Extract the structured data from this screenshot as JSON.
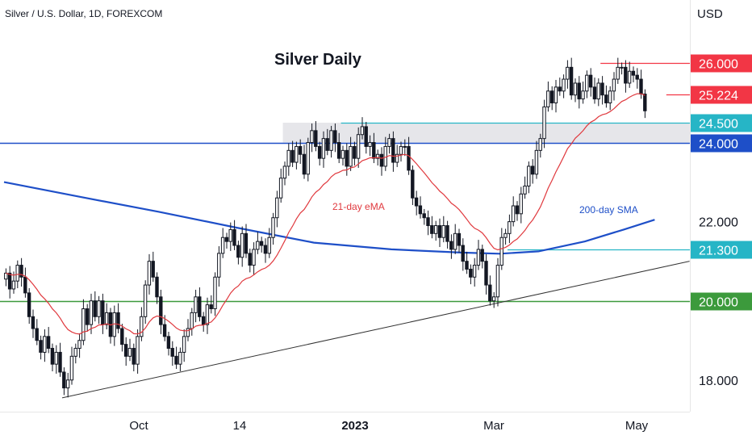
{
  "header": {
    "symbol": "Silver / U.S. Dollar, 1D, FOREXCOM",
    "currency": "USD"
  },
  "chart_data": {
    "type": "candlestick",
    "title": "Silver Daily",
    "ylim": [
      17.2,
      27.6
    ],
    "x_ticks": [
      "Oct",
      "14",
      "2023",
      "Mar",
      "May"
    ],
    "price_ticks": [
      {
        "label": "22.000",
        "value": 22.0
      },
      {
        "label": "18.000",
        "value": 18.0
      }
    ],
    "levels": [
      {
        "label": "26.000",
        "value": 26.0,
        "color": "#f23645",
        "x_from_bar": 154
      },
      {
        "label": "25.224",
        "value": 25.224,
        "color": "#f23645",
        "x_from_bar": 171
      },
      {
        "label": "24.500",
        "value": 24.5,
        "color": "#26b5c6",
        "x_from_bar": 87
      },
      {
        "label": "24.000",
        "value": 24.0,
        "color": "#1e4fc8",
        "x_from_bar": -1
      },
      {
        "label": "21.300",
        "value": 21.3,
        "color": "#26b5c6",
        "x_from_bar": 130
      },
      {
        "label": "20.000",
        "value": 20.0,
        "color": "#3c9a3c",
        "x_from_bar": -1
      }
    ],
    "resistance_zone": {
      "from": 24.0,
      "to": 24.5,
      "start_bar": 72
    },
    "trendline": [
      {
        "bar": 15,
        "value": 17.55
      },
      {
        "bar": 177,
        "value": 21.0
      }
    ],
    "series_labels": {
      "ema": {
        "text": "21-day eMA",
        "color": "#e0393e"
      },
      "sma": {
        "text": "200-day SMA",
        "color": "#1e4fc8"
      }
    },
    "sma200": [
      {
        "bar": 0,
        "value": 23.0
      },
      {
        "bar": 20,
        "value": 22.62
      },
      {
        "bar": 40,
        "value": 22.25
      },
      {
        "bar": 60,
        "value": 21.85
      },
      {
        "bar": 80,
        "value": 21.47
      },
      {
        "bar": 100,
        "value": 21.3
      },
      {
        "bar": 118,
        "value": 21.22
      },
      {
        "bar": 128,
        "value": 21.19
      },
      {
        "bar": 138,
        "value": 21.25
      },
      {
        "bar": 150,
        "value": 21.5
      },
      {
        "bar": 160,
        "value": 21.8
      },
      {
        "bar": 168,
        "value": 22.05
      }
    ],
    "closes": [
      20.7,
      20.3,
      20.5,
      20.9,
      20.6,
      20.2,
      19.6,
      19.3,
      19.0,
      18.7,
      19.1,
      18.8,
      18.4,
      18.7,
      18.2,
      17.8,
      18.0,
      18.6,
      18.8,
      19.0,
      19.8,
      19.4,
      20.0,
      19.6,
      20.0,
      19.4,
      19.7,
      19.1,
      19.7,
      19.3,
      18.9,
      18.6,
      18.8,
      18.4,
      19.1,
      19.6,
      20.4,
      21.0,
      20.6,
      20.1,
      19.4,
      19.1,
      18.8,
      18.6,
      18.4,
      18.7,
      19.1,
      19.3,
      19.7,
      20.1,
      19.6,
      19.4,
      19.9,
      19.8,
      20.6,
      21.2,
      21.6,
      21.5,
      21.8,
      21.4,
      21.1,
      21.7,
      21.2,
      20.9,
      21.3,
      21.5,
      21.4,
      21.2,
      21.6,
      22.1,
      22.6,
      23.1,
      23.4,
      23.8,
      23.5,
      23.9,
      23.7,
      23.2,
      24.0,
      24.3,
      23.9,
      23.6,
      24.1,
      23.8,
      24.3,
      24.0,
      23.6,
      23.8,
      23.4,
      23.9,
      23.6,
      24.2,
      24.4,
      23.9,
      24.0,
      23.6,
      23.7,
      23.4,
      23.9,
      24.1,
      23.5,
      23.7,
      23.9,
      23.9,
      23.3,
      22.6,
      22.4,
      22.2,
      22.1,
      21.9,
      21.7,
      21.9,
      21.6,
      21.9,
      21.5,
      21.3,
      21.7,
      21.4,
      21.0,
      20.8,
      20.6,
      20.9,
      21.3,
      21.0,
      20.4,
      20.0,
      20.1,
      20.9,
      21.6,
      21.7,
      22.0,
      22.4,
      22.2,
      22.7,
      22.9,
      23.4,
      23.2,
      23.8,
      24.1,
      24.9,
      25.3,
      25.0,
      25.4,
      25.3,
      25.6,
      25.9,
      25.2,
      25.5,
      25.1,
      25.3,
      25.7,
      25.4,
      25.1,
      25.5,
      25.2,
      25.0,
      25.3,
      25.6,
      25.9,
      25.9,
      25.5,
      25.8,
      25.7,
      25.6,
      25.224,
      24.8
    ]
  }
}
